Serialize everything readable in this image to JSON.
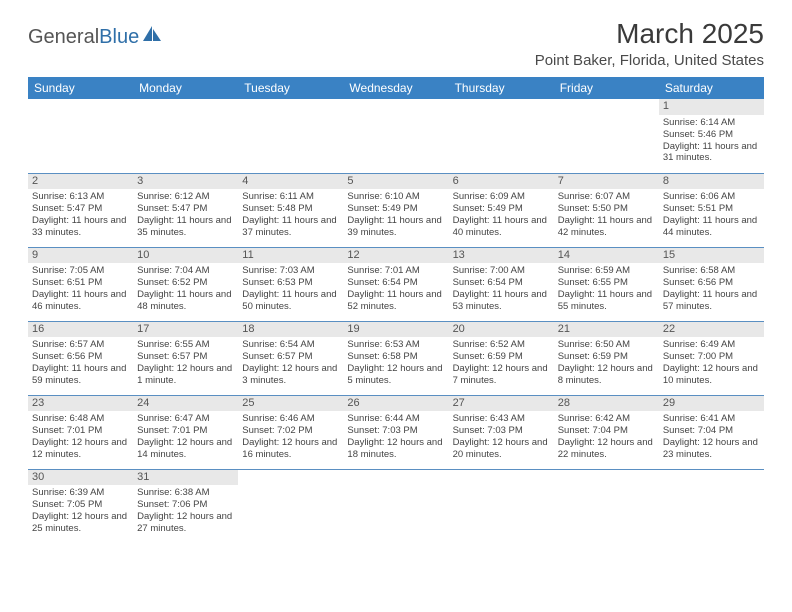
{
  "logo": {
    "text1": "General",
    "text2": "Blue"
  },
  "title": "March 2025",
  "location": "Point Baker, Florida, United States",
  "colors": {
    "header_bg": "#3a82c4",
    "header_text": "#ffffff",
    "daynum_bg": "#e8e8e8",
    "row_border": "#5a8fc2",
    "logo_blue": "#2f6fa8"
  },
  "weekdays": [
    "Sunday",
    "Monday",
    "Tuesday",
    "Wednesday",
    "Thursday",
    "Friday",
    "Saturday"
  ],
  "weeks": [
    [
      null,
      null,
      null,
      null,
      null,
      null,
      {
        "n": "1",
        "sr": "6:14 AM",
        "ss": "5:46 PM",
        "dl": "11 hours and 31 minutes."
      }
    ],
    [
      {
        "n": "2",
        "sr": "6:13 AM",
        "ss": "5:47 PM",
        "dl": "11 hours and 33 minutes."
      },
      {
        "n": "3",
        "sr": "6:12 AM",
        "ss": "5:47 PM",
        "dl": "11 hours and 35 minutes."
      },
      {
        "n": "4",
        "sr": "6:11 AM",
        "ss": "5:48 PM",
        "dl": "11 hours and 37 minutes."
      },
      {
        "n": "5",
        "sr": "6:10 AM",
        "ss": "5:49 PM",
        "dl": "11 hours and 39 minutes."
      },
      {
        "n": "6",
        "sr": "6:09 AM",
        "ss": "5:49 PM",
        "dl": "11 hours and 40 minutes."
      },
      {
        "n": "7",
        "sr": "6:07 AM",
        "ss": "5:50 PM",
        "dl": "11 hours and 42 minutes."
      },
      {
        "n": "8",
        "sr": "6:06 AM",
        "ss": "5:51 PM",
        "dl": "11 hours and 44 minutes."
      }
    ],
    [
      {
        "n": "9",
        "sr": "7:05 AM",
        "ss": "6:51 PM",
        "dl": "11 hours and 46 minutes."
      },
      {
        "n": "10",
        "sr": "7:04 AM",
        "ss": "6:52 PM",
        "dl": "11 hours and 48 minutes."
      },
      {
        "n": "11",
        "sr": "7:03 AM",
        "ss": "6:53 PM",
        "dl": "11 hours and 50 minutes."
      },
      {
        "n": "12",
        "sr": "7:01 AM",
        "ss": "6:54 PM",
        "dl": "11 hours and 52 minutes."
      },
      {
        "n": "13",
        "sr": "7:00 AM",
        "ss": "6:54 PM",
        "dl": "11 hours and 53 minutes."
      },
      {
        "n": "14",
        "sr": "6:59 AM",
        "ss": "6:55 PM",
        "dl": "11 hours and 55 minutes."
      },
      {
        "n": "15",
        "sr": "6:58 AM",
        "ss": "6:56 PM",
        "dl": "11 hours and 57 minutes."
      }
    ],
    [
      {
        "n": "16",
        "sr": "6:57 AM",
        "ss": "6:56 PM",
        "dl": "11 hours and 59 minutes."
      },
      {
        "n": "17",
        "sr": "6:55 AM",
        "ss": "6:57 PM",
        "dl": "12 hours and 1 minute."
      },
      {
        "n": "18",
        "sr": "6:54 AM",
        "ss": "6:57 PM",
        "dl": "12 hours and 3 minutes."
      },
      {
        "n": "19",
        "sr": "6:53 AM",
        "ss": "6:58 PM",
        "dl": "12 hours and 5 minutes."
      },
      {
        "n": "20",
        "sr": "6:52 AM",
        "ss": "6:59 PM",
        "dl": "12 hours and 7 minutes."
      },
      {
        "n": "21",
        "sr": "6:50 AM",
        "ss": "6:59 PM",
        "dl": "12 hours and 8 minutes."
      },
      {
        "n": "22",
        "sr": "6:49 AM",
        "ss": "7:00 PM",
        "dl": "12 hours and 10 minutes."
      }
    ],
    [
      {
        "n": "23",
        "sr": "6:48 AM",
        "ss": "7:01 PM",
        "dl": "12 hours and 12 minutes."
      },
      {
        "n": "24",
        "sr": "6:47 AM",
        "ss": "7:01 PM",
        "dl": "12 hours and 14 minutes."
      },
      {
        "n": "25",
        "sr": "6:46 AM",
        "ss": "7:02 PM",
        "dl": "12 hours and 16 minutes."
      },
      {
        "n": "26",
        "sr": "6:44 AM",
        "ss": "7:03 PM",
        "dl": "12 hours and 18 minutes."
      },
      {
        "n": "27",
        "sr": "6:43 AM",
        "ss": "7:03 PM",
        "dl": "12 hours and 20 minutes."
      },
      {
        "n": "28",
        "sr": "6:42 AM",
        "ss": "7:04 PM",
        "dl": "12 hours and 22 minutes."
      },
      {
        "n": "29",
        "sr": "6:41 AM",
        "ss": "7:04 PM",
        "dl": "12 hours and 23 minutes."
      }
    ],
    [
      {
        "n": "30",
        "sr": "6:39 AM",
        "ss": "7:05 PM",
        "dl": "12 hours and 25 minutes."
      },
      {
        "n": "31",
        "sr": "6:38 AM",
        "ss": "7:06 PM",
        "dl": "12 hours and 27 minutes."
      },
      null,
      null,
      null,
      null,
      null
    ]
  ],
  "labels": {
    "sunrise": "Sunrise: ",
    "sunset": "Sunset: ",
    "daylight": "Daylight: "
  }
}
